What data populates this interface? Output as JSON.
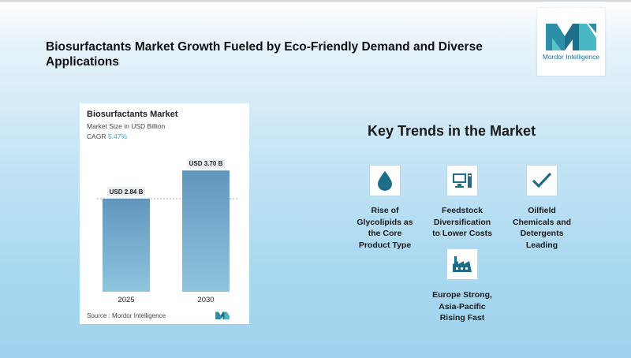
{
  "headline": "Biosurfactants Market Growth Fueled by Eco-Friendly Demand and Diverse Applications",
  "logo": {
    "text": "Mordor Intelligence"
  },
  "card": {
    "title": "Biosurfactants Market",
    "subtitle": "Market Size in USD Billion",
    "cagr_label": "CAGR",
    "cagr_value": "5.47%",
    "source_label": "Source :",
    "source_value": "Mordor Intelligence"
  },
  "chart_data": {
    "type": "bar",
    "title": "Biosurfactants Market",
    "subtitle": "Market Size in USD Billion",
    "categories": [
      "2025",
      "2030"
    ],
    "values": [
      2.84,
      3.7
    ],
    "data_labels": [
      "USD 2.84 B",
      "USD 3.70 B"
    ],
    "ylabel": "",
    "xlabel": "",
    "ylim": [
      0,
      3.85
    ],
    "grid": false,
    "bar_color": "#6a9fc4"
  },
  "key_trends": {
    "title": "Key Trends in the Market",
    "items": [
      {
        "label_lines": [
          "Rise of",
          "Glycolipids as",
          "the Core",
          "Product Type"
        ],
        "icon": "droplet-icon"
      },
      {
        "label_lines": [
          "Feedstock",
          "Diversification",
          "to Lower Costs"
        ],
        "icon": "computer-icon"
      },
      {
        "label_lines": [
          "Oilfield",
          "Chemicals and",
          "Detergents",
          "Leading"
        ],
        "icon": "checkmark-icon"
      },
      {
        "label_lines": [
          "Europe Strong,",
          "Asia-Pacific",
          "Rising Fast"
        ],
        "icon": "factory-icon"
      }
    ]
  },
  "colors": {
    "accent": "#1a6f8a",
    "icon": "#1e6d88",
    "cagr": "#3b9fc7"
  }
}
